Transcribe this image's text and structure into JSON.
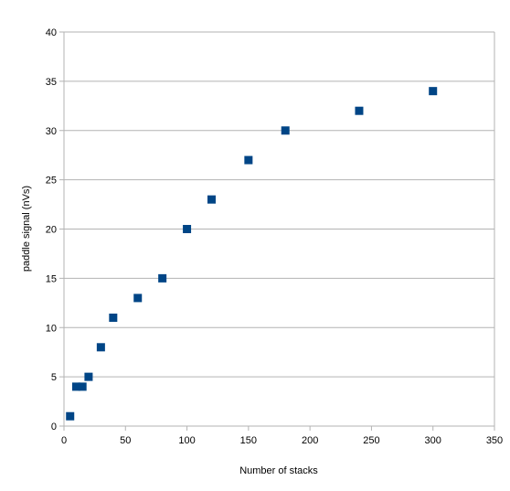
{
  "chart_data": {
    "type": "scatter",
    "title": "",
    "xlabel": "Number of stacks",
    "ylabel": "paddle signal (nVs)",
    "xlim": [
      0,
      350
    ],
    "ylim": [
      0,
      40
    ],
    "x_ticks": [
      0,
      50,
      100,
      150,
      200,
      250,
      300,
      350
    ],
    "y_ticks": [
      0,
      5,
      10,
      15,
      20,
      25,
      30,
      35,
      40
    ],
    "grid": "horizontal",
    "legend": "none",
    "marker": "square",
    "colors": {
      "marker": "#004586",
      "grid": "#b3b3b3",
      "axis": "#b3b3b3",
      "text": "#000000"
    },
    "series": [
      {
        "points": [
          {
            "x": 5,
            "y": 1
          },
          {
            "x": 10,
            "y": 4
          },
          {
            "x": 15,
            "y": 4
          },
          {
            "x": 20,
            "y": 5
          },
          {
            "x": 30,
            "y": 8
          },
          {
            "x": 40,
            "y": 11
          },
          {
            "x": 60,
            "y": 13
          },
          {
            "x": 80,
            "y": 15
          },
          {
            "x": 100,
            "y": 20
          },
          {
            "x": 120,
            "y": 23
          },
          {
            "x": 150,
            "y": 27
          },
          {
            "x": 180,
            "y": 30
          },
          {
            "x": 240,
            "y": 32
          },
          {
            "x": 300,
            "y": 34
          }
        ]
      }
    ]
  }
}
